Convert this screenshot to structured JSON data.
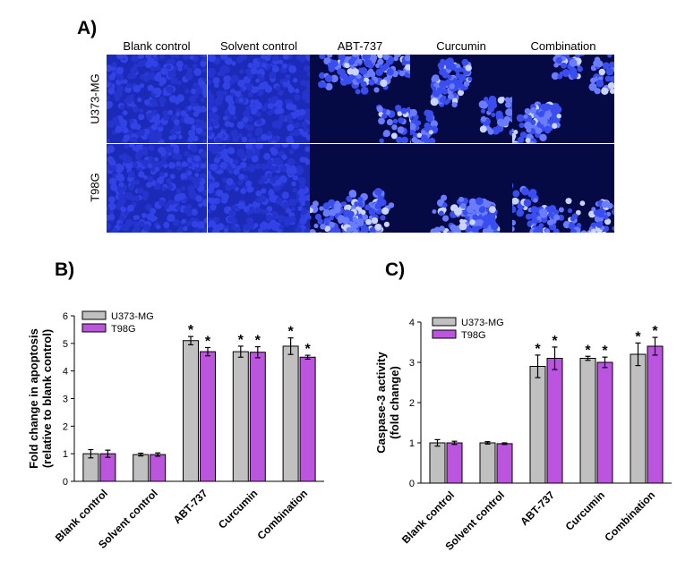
{
  "panel_labels": {
    "a": "A)",
    "b": "B)",
    "c": "C)"
  },
  "micrograph_grid": {
    "columns": [
      "Blank control",
      "Solvent control",
      "ABT-737",
      "Curcumin",
      "Combination"
    ],
    "rows": [
      "U373-MG",
      "T98G"
    ],
    "colors": {
      "background": "#0a0f7a",
      "nuclei": "#3a4ef0",
      "bright": "#c9d4ff"
    }
  },
  "chart_data": [
    {
      "type": "bar",
      "categories": [
        "Blank control",
        "Solvent control",
        "ABT-737",
        "Curcumin",
        "Combination"
      ],
      "series": [
        {
          "name": "U373-MG",
          "values": [
            1.0,
            0.97,
            5.1,
            4.7,
            4.9
          ],
          "errors": [
            0.15,
            0.05,
            0.15,
            0.2,
            0.3
          ],
          "significant": [
            false,
            false,
            true,
            true,
            true
          ],
          "color": "#c0c0c0"
        },
        {
          "name": "T98G",
          "values": [
            1.0,
            0.97,
            4.7,
            4.68,
            4.5
          ],
          "errors": [
            0.13,
            0.06,
            0.15,
            0.2,
            0.07
          ],
          "significant": [
            false,
            false,
            true,
            true,
            true
          ],
          "color": "#bb55dd"
        }
      ],
      "xlabel": "",
      "ylabel_lines": [
        "Fold change in apoptosis",
        "(relative to blank control)"
      ],
      "ylim": [
        0,
        6
      ],
      "yticks": [
        "0",
        "1",
        "2",
        "3",
        "4",
        "5",
        "6"
      ],
      "sig_marker": "*",
      "legend_position": "top-left",
      "grid": false
    },
    {
      "type": "bar",
      "categories": [
        "Blank control",
        "Solvent control",
        "ABT-737",
        "Curcumin",
        "Combination"
      ],
      "series": [
        {
          "name": "U373-MG",
          "values": [
            1.0,
            1.0,
            2.9,
            3.1,
            3.2
          ],
          "errors": [
            0.08,
            0.03,
            0.28,
            0.05,
            0.28
          ],
          "significant": [
            false,
            false,
            true,
            true,
            true
          ],
          "color": "#c0c0c0"
        },
        {
          "name": "T98G",
          "values": [
            1.0,
            0.98,
            3.1,
            3.0,
            3.4
          ],
          "errors": [
            0.04,
            0.02,
            0.28,
            0.13,
            0.22
          ],
          "significant": [
            false,
            false,
            true,
            true,
            true
          ],
          "color": "#bb55dd"
        }
      ],
      "xlabel": "",
      "ylabel_lines": [
        "Caspase-3 activity",
        "(fold change)"
      ],
      "ylim": [
        0,
        4
      ],
      "yticks": [
        "0",
        "1",
        "2",
        "3",
        "4"
      ],
      "sig_marker": "*",
      "legend_position": "top-left",
      "grid": false
    }
  ]
}
